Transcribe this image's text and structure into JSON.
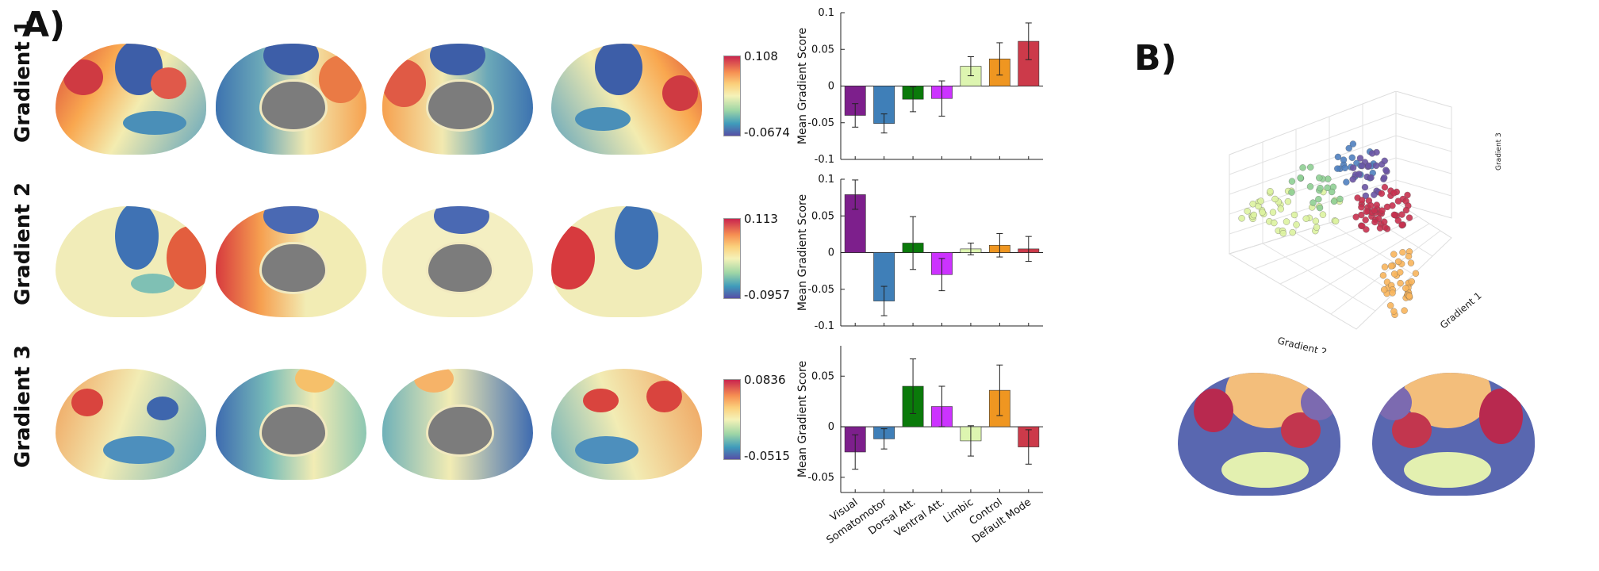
{
  "panel_a_label": "A)",
  "panel_b_label": "B)",
  "rows": [
    {
      "label": "Gradient 1",
      "cbar_max": "0.108",
      "cbar_min": "-0.0674"
    },
    {
      "label": "Gradient 2",
      "cbar_max": "0.113",
      "cbar_min": "-0.0957"
    },
    {
      "label": "Gradient 3",
      "cbar_max": "0.0836",
      "cbar_min": "-0.0515"
    }
  ],
  "chart_data": [
    {
      "type": "bar",
      "categories": [
        "Visual",
        "Somatomotor",
        "Dorsal Att.",
        "Ventral Att.",
        "Limbic",
        "Control",
        "Default Mode"
      ],
      "values": [
        -0.04,
        -0.051,
        -0.018,
        -0.017,
        0.027,
        0.037,
        0.061
      ],
      "errors": [
        0.016,
        0.013,
        0.017,
        0.024,
        0.013,
        0.022,
        0.025
      ],
      "colors": [
        "#7d1f8c",
        "#3f7fb8",
        "#0a7a0a",
        "#cc33ff",
        "#ddf5b0",
        "#ef9621",
        "#cc3a4a"
      ],
      "ylabel": "Mean Gradient Score",
      "ylim": [
        -0.1,
        0.1
      ],
      "yticks": [
        -0.1,
        -0.05,
        0,
        0.05,
        0.1
      ],
      "ytick_labels": [
        "-0.1",
        "-0.05",
        "0",
        "0.05",
        "0.1"
      ]
    },
    {
      "type": "bar",
      "categories": [
        "Visual",
        "Somatomotor",
        "Dorsal Att.",
        "Ventral Att.",
        "Limbic",
        "Control",
        "Default Mode"
      ],
      "values": [
        0.079,
        -0.066,
        0.013,
        -0.03,
        0.005,
        0.01,
        0.005
      ],
      "errors": [
        0.02,
        0.02,
        0.036,
        0.022,
        0.008,
        0.016,
        0.017
      ],
      "colors": [
        "#7d1f8c",
        "#3f7fb8",
        "#0a7a0a",
        "#cc33ff",
        "#ddf5b0",
        "#ef9621",
        "#cc3a4a"
      ],
      "ylabel": "Mean Gradient Score",
      "ylim": [
        -0.1,
        0.1
      ],
      "yticks": [
        -0.1,
        -0.05,
        0,
        0.05,
        0.1
      ],
      "ytick_labels": [
        "-0.1",
        "-0.05",
        "0",
        "0.05",
        "0.1"
      ]
    },
    {
      "type": "bar",
      "categories": [
        "Visual",
        "Somatomotor",
        "Dorsal Att.",
        "Ventral Att.",
        "Limbic",
        "Control",
        "Default Mode"
      ],
      "values": [
        -0.025,
        -0.012,
        0.04,
        0.02,
        -0.014,
        0.036,
        -0.02
      ],
      "errors": [
        0.017,
        0.01,
        0.027,
        0.02,
        0.015,
        0.025,
        0.017
      ],
      "colors": [
        "#7d1f8c",
        "#3f7fb8",
        "#0a7a0a",
        "#cc33ff",
        "#ddf5b0",
        "#ef9621",
        "#cc3a4a"
      ],
      "ylabel": "Mean Gradient Score",
      "ylim": [
        -0.065,
        0.08
      ],
      "yticks": [
        -0.05,
        0,
        0.05
      ],
      "ytick_labels": [
        "-0.05",
        "0",
        "0.05"
      ]
    },
    {
      "type": "scatter",
      "xlabel": "Gradient 2",
      "ylabel": "Gradient 1",
      "zlabel": "Gradient 3",
      "groups": [
        {
          "color": "#ddf3a0"
        },
        {
          "color": "#8fcf94"
        },
        {
          "color": "#4f7fbf"
        },
        {
          "color": "#6a54a4"
        },
        {
          "color": "#c6314f"
        },
        {
          "color": "#f8b55c"
        }
      ]
    }
  ]
}
